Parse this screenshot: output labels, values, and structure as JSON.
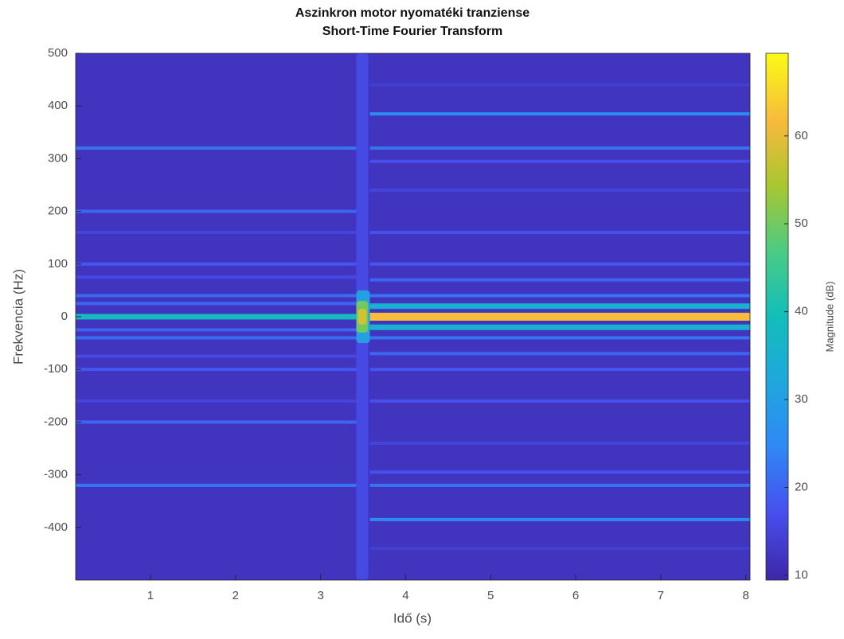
{
  "chart_data": {
    "type": "spectrogram",
    "title": "Aszinkron motor nyomatéki tranziense",
    "subtitle": "Short-Time Fourier Transform",
    "xlabel": "Idő (s)",
    "ylabel": "Frekvencia (Hz)",
    "colorbar_label": "Magnitude (dB)",
    "xlim": [
      0.12,
      8.05
    ],
    "xticks": [
      1,
      2,
      3,
      4,
      5,
      6,
      7,
      8
    ],
    "ylim": [
      -500,
      500
    ],
    "yticks": [
      -400,
      -300,
      -200,
      -100,
      0,
      100,
      200,
      300,
      400,
      500
    ],
    "clim": [
      9.45,
      69.4
    ],
    "cticks": [
      10,
      20,
      30,
      40,
      50,
      60
    ],
    "background": 12,
    "bands": [
      {
        "x": [
          0.12,
          3.42
        ],
        "y": 0,
        "value": 38
      },
      {
        "x": [
          0.12,
          3.42
        ],
        "y": 320,
        "value": 22
      },
      {
        "x": [
          0.12,
          3.42
        ],
        "y": -320,
        "value": 22
      },
      {
        "x": [
          0.12,
          3.42
        ],
        "y": 200,
        "value": 20
      },
      {
        "x": [
          0.12,
          3.42
        ],
        "y": -200,
        "value": 20
      },
      {
        "x": [
          0.12,
          3.42
        ],
        "y": 100,
        "value": 18
      },
      {
        "x": [
          0.12,
          3.42
        ],
        "y": -100,
        "value": 18
      },
      {
        "x": [
          0.12,
          3.42
        ],
        "y": 75,
        "value": 16
      },
      {
        "x": [
          0.12,
          3.42
        ],
        "y": -75,
        "value": 16
      },
      {
        "x": [
          0.12,
          3.42
        ],
        "y": 40,
        "value": 21
      },
      {
        "x": [
          0.12,
          3.42
        ],
        "y": -40,
        "value": 21
      },
      {
        "x": [
          0.12,
          3.42
        ],
        "y": 25,
        "value": 20
      },
      {
        "x": [
          0.12,
          3.42
        ],
        "y": -25,
        "value": 20
      },
      {
        "x": [
          0.12,
          3.42
        ],
        "y": 160,
        "value": 15
      },
      {
        "x": [
          0.12,
          3.42
        ],
        "y": -160,
        "value": 15
      },
      {
        "x": [
          3.58,
          8.05
        ],
        "y": 0,
        "value": 62
      },
      {
        "x": [
          3.58,
          8.05
        ],
        "y": 20,
        "value": 35
      },
      {
        "x": [
          3.58,
          8.05
        ],
        "y": -20,
        "value": 35
      },
      {
        "x": [
          3.58,
          8.05
        ],
        "y": 40,
        "value": 22
      },
      {
        "x": [
          3.58,
          8.05
        ],
        "y": -40,
        "value": 22
      },
      {
        "x": [
          3.58,
          8.05
        ],
        "y": 70,
        "value": 20
      },
      {
        "x": [
          3.58,
          8.05
        ],
        "y": -70,
        "value": 20
      },
      {
        "x": [
          3.58,
          8.05
        ],
        "y": 100,
        "value": 18
      },
      {
        "x": [
          3.58,
          8.05
        ],
        "y": -100,
        "value": 18
      },
      {
        "x": [
          3.58,
          8.05
        ],
        "y": 160,
        "value": 17
      },
      {
        "x": [
          3.58,
          8.05
        ],
        "y": -160,
        "value": 17
      },
      {
        "x": [
          3.58,
          8.05
        ],
        "y": 240,
        "value": 15
      },
      {
        "x": [
          3.58,
          8.05
        ],
        "y": -240,
        "value": 15
      },
      {
        "x": [
          3.58,
          8.05
        ],
        "y": 295,
        "value": 17
      },
      {
        "x": [
          3.58,
          8.05
        ],
        "y": -295,
        "value": 17
      },
      {
        "x": [
          3.58,
          8.05
        ],
        "y": 320,
        "value": 22
      },
      {
        "x": [
          3.58,
          8.05
        ],
        "y": -320,
        "value": 22
      },
      {
        "x": [
          3.58,
          8.05
        ],
        "y": 385,
        "value": 25
      },
      {
        "x": [
          3.58,
          8.05
        ],
        "y": -385,
        "value": 25
      },
      {
        "x": [
          3.58,
          8.05
        ],
        "y": 440,
        "value": 14
      },
      {
        "x": [
          3.58,
          8.05
        ],
        "y": -440,
        "value": 14
      }
    ],
    "patches": [
      {
        "x": [
          3.42,
          3.56
        ],
        "y": [
          -500,
          500
        ],
        "value": 16
      },
      {
        "x": [
          3.42,
          3.58
        ],
        "y": [
          -50,
          50
        ],
        "value": 30
      },
      {
        "x": [
          3.42,
          3.56
        ],
        "y": [
          -30,
          30
        ],
        "value": 50
      },
      {
        "x": [
          3.44,
          3.54
        ],
        "y": [
          -15,
          15
        ],
        "value": 58
      }
    ]
  }
}
